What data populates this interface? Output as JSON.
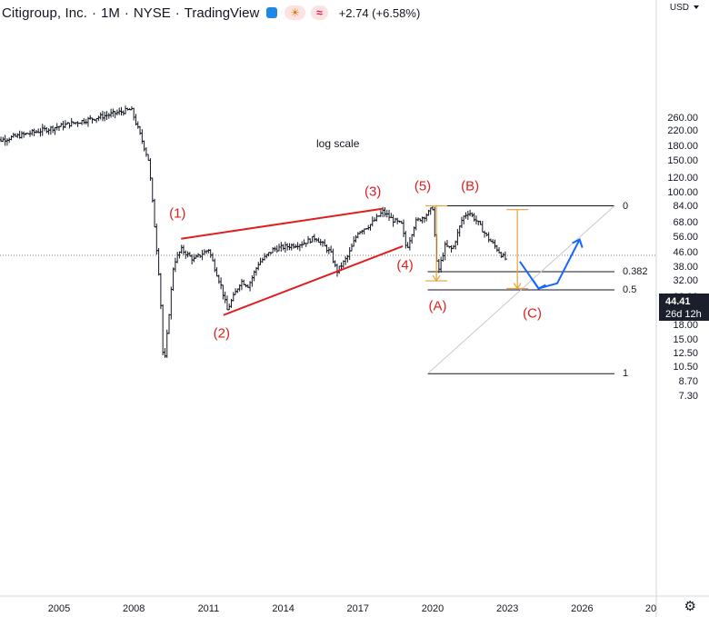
{
  "header": {
    "symbol_name": "Citigroup, Inc.",
    "interval": "1M",
    "exchange": "NYSE",
    "source": "TradingView",
    "change": "+2.74 (+6.58%)"
  },
  "currency": "USD",
  "current_price": {
    "value": "44.41",
    "countdown": "26d 12h"
  },
  "note": "log scale",
  "y_axis_ticks": [
    "260.00",
    "220.00",
    "180.00",
    "150.00",
    "120.00",
    "100.00",
    "84.00",
    "68.00",
    "56.00",
    "46.00",
    "38.00",
    "32.00",
    "26.00",
    "22.00",
    "18.00",
    "15.00",
    "12.50",
    "10.50",
    "8.70",
    "7.30"
  ],
  "x_axis_ticks": [
    "2005",
    "2008",
    "2011",
    "2014",
    "2017",
    "2020",
    "2023",
    "2026",
    "20"
  ],
  "wave_labels": [
    "(1)",
    "(2)",
    "(3)",
    "(4)",
    "(5)",
    "(A)",
    "(B)",
    "(C)"
  ],
  "fib_levels": [
    "0",
    "0.382",
    "0.5",
    "1"
  ],
  "colors": {
    "wave": "#e01e1e",
    "projection": "#1565ff",
    "measure": "#e6a23c",
    "bars": "#131722",
    "fib": "#131722"
  },
  "chart_data": {
    "type": "ohlc",
    "title": "Citigroup, Inc. · 1M · NYSE",
    "scale": "log",
    "ylim": [
      6.7,
      290
    ],
    "x_range": [
      2002.1,
      2029.2
    ],
    "series": [
      {
        "values": [
          [
            2002.25,
            190
          ],
          [
            2007.9,
            290
          ],
          [
            2008.3,
            200
          ],
          [
            2008.6,
            150
          ],
          [
            2009.05,
            30
          ],
          [
            2009.2,
            10
          ],
          [
            2009.6,
            40
          ],
          [
            2009.9,
            48
          ],
          [
            2010.4,
            42
          ],
          [
            2011.0,
            48
          ],
          [
            2011.5,
            30
          ],
          [
            2011.75,
            22
          ],
          [
            2012.3,
            32
          ],
          [
            2012.6,
            30
          ],
          [
            2013.0,
            40
          ],
          [
            2013.6,
            48
          ],
          [
            2014.2,
            50
          ],
          [
            2014.8,
            52
          ],
          [
            2015.3,
            56
          ],
          [
            2015.9,
            46
          ],
          [
            2016.15,
            36
          ],
          [
            2016.6,
            44
          ],
          [
            2017.0,
            60
          ],
          [
            2017.5,
            66
          ],
          [
            2018.0,
            78
          ],
          [
            2018.4,
            70
          ],
          [
            2018.75,
            66
          ],
          [
            2018.95,
            48
          ],
          [
            2019.3,
            68
          ],
          [
            2019.8,
            76
          ],
          [
            2020.0,
            82
          ],
          [
            2020.2,
            35
          ],
          [
            2020.5,
            50
          ],
          [
            2020.8,
            48
          ],
          [
            2021.2,
            72
          ],
          [
            2021.45,
            78
          ],
          [
            2021.8,
            68
          ],
          [
            2022.2,
            56
          ],
          [
            2022.6,
            48
          ],
          [
            2022.8,
            44
          ],
          [
            2022.95,
            42
          ]
        ]
      }
    ],
    "wave_points": [
      {
        "label": "(1)",
        "x": 2009.9,
        "y": 55
      },
      {
        "label": "(2)",
        "x": 2011.6,
        "y": 21
      },
      {
        "label": "(3)",
        "x": 2018.0,
        "y": 80
      },
      {
        "label": "(4)",
        "x": 2019.0,
        "y": 48
      },
      {
        "label": "(5)",
        "x": 2020.0,
        "y": 84
      },
      {
        "label": "(A)",
        "x": 2020.2,
        "y": 32
      },
      {
        "label": "(B)",
        "x": 2021.5,
        "y": 80
      },
      {
        "label": "(C)",
        "x": 2024.0,
        "y": 29
      }
    ],
    "fib": [
      {
        "level": "0",
        "price": 84
      },
      {
        "level": "0.382",
        "price": 36
      },
      {
        "level": "0.5",
        "price": 28.5
      },
      {
        "level": "1",
        "price": 9.7
      }
    ]
  }
}
